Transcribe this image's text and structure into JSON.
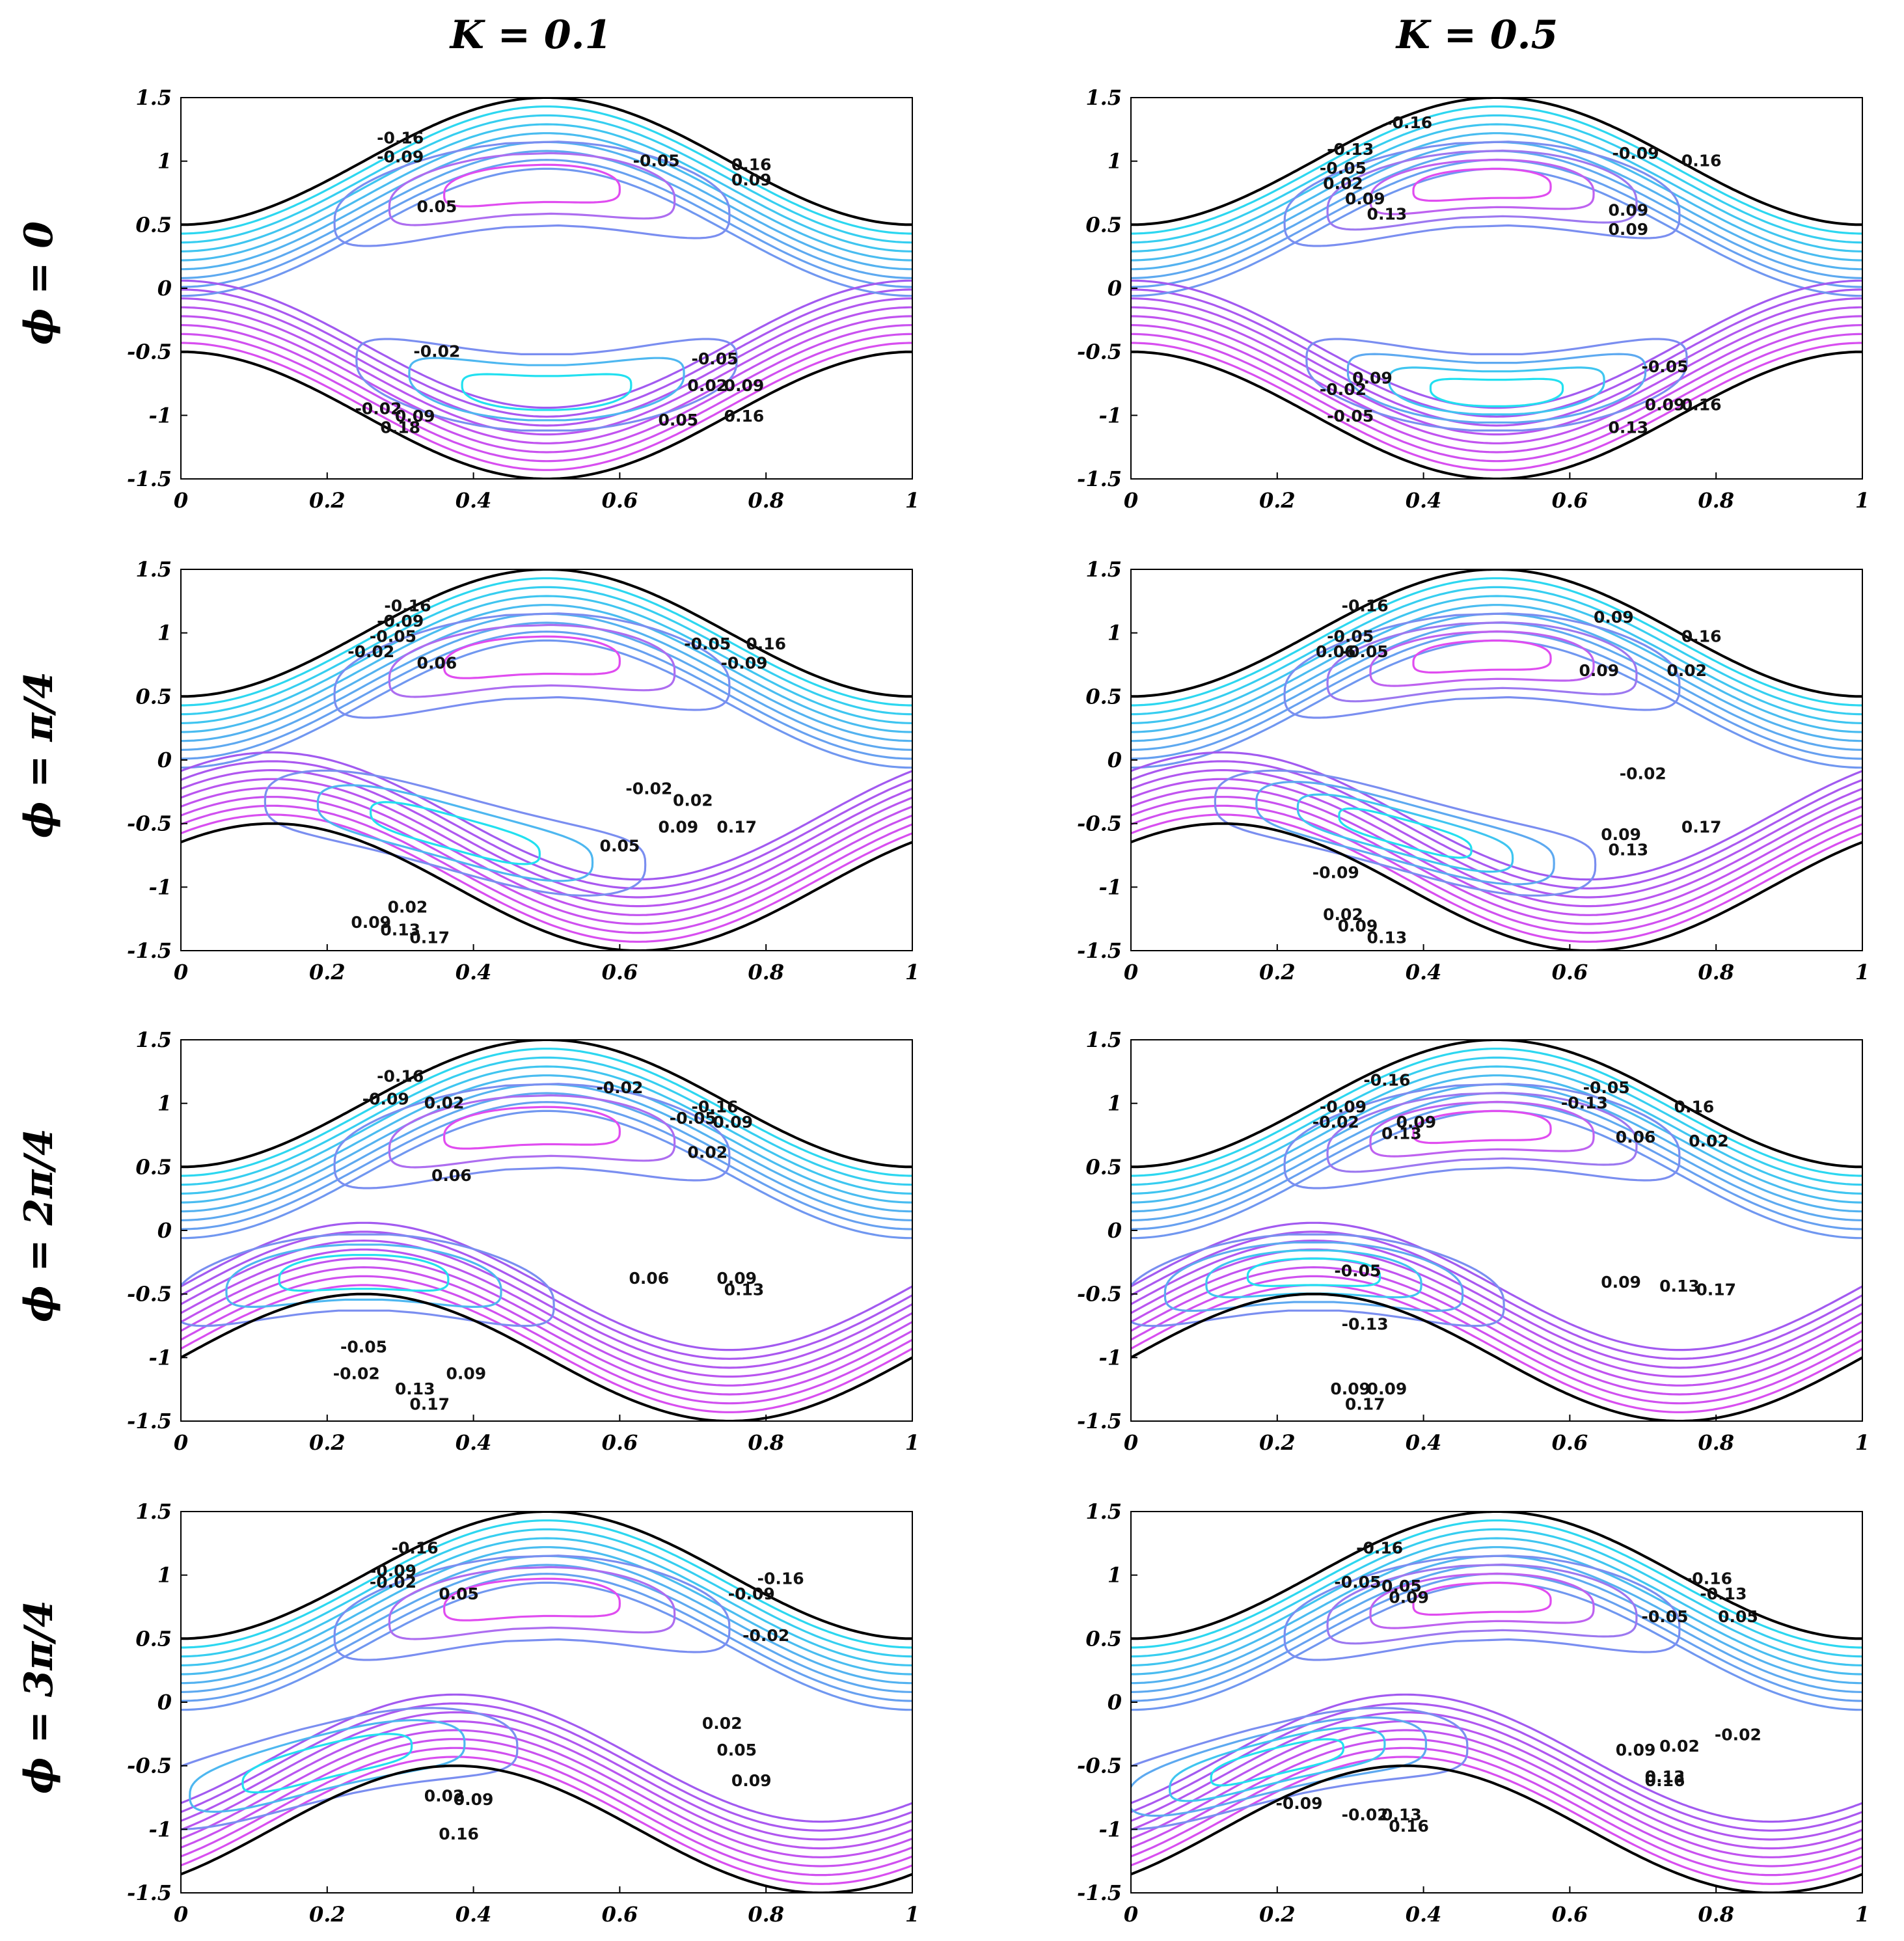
{
  "column_titles": [
    "K = 0.1",
    "K = 0.5"
  ],
  "row_titles": [
    "ϕ = 0",
    "ϕ = π/4",
    "ϕ = 2π/4",
    "ϕ = 3π/4"
  ],
  "chart_data": [
    {
      "type": "contour",
      "K": 0.1,
      "phi": 0,
      "xlim": [
        0,
        1
      ],
      "ylim": [
        -1.5,
        1.5
      ],
      "xticks": [
        "0",
        "0.2",
        "0.4",
        "0.6",
        "0.8",
        "1"
      ],
      "yticks": [
        "1.5",
        "1",
        "0.5",
        "0",
        "-0.5",
        "-1",
        "-1.5"
      ],
      "wall_amplitude": 0.5,
      "wall_phase": 0,
      "contour_labels": [
        "-0.16",
        "-0.09",
        "-0.05",
        "0.16",
        "0.09",
        "0.05",
        "-0.02",
        "-0.05",
        "-0.02",
        "0.09",
        "0.02",
        "0.09",
        "0.18",
        "0.05",
        "0.16"
      ]
    },
    {
      "type": "contour",
      "K": 0.5,
      "phi": 0,
      "xlim": [
        0,
        1
      ],
      "ylim": [
        -1.5,
        1.5
      ],
      "xticks": [
        "0",
        "0.2",
        "0.4",
        "0.6",
        "0.8",
        "1"
      ],
      "yticks": [
        "1.5",
        "1",
        "0.5",
        "0",
        "-0.5",
        "-1",
        "-1.5"
      ],
      "wall_amplitude": 0.5,
      "wall_phase": 0,
      "contour_labels": [
        "-0.16",
        "-0.13",
        "-0.05",
        "0.02",
        "0.09",
        "0.13",
        "-0.09",
        "0.16",
        "0.09",
        "0.09",
        "0.09",
        "-0.02",
        "-0.05",
        "-0.05",
        "0.09",
        "0.16",
        "0.13"
      ]
    },
    {
      "type": "contour",
      "K": 0.1,
      "phi": "π/4",
      "xlim": [
        0,
        1
      ],
      "ylim": [
        -1.5,
        1.5
      ],
      "xticks": [
        "0",
        "0.2",
        "0.4",
        "0.6",
        "0.8",
        "1"
      ],
      "yticks": [
        "1.5",
        "1",
        "0.5",
        "0",
        "-0.5",
        "-1",
        "-1.5"
      ],
      "wall_amplitude": 0.5,
      "wall_phase": 0.7854,
      "contour_labels": [
        "-0.16",
        "-0.09",
        "-0.05",
        "-0.02",
        "0.06",
        "-0.05",
        "0.16",
        "-0.09",
        "-0.02",
        "0.02",
        "0.09",
        "0.17",
        "0.05",
        "0.02",
        "0.09",
        "0.13",
        "0.17"
      ]
    },
    {
      "type": "contour",
      "K": 0.5,
      "phi": "π/4",
      "xlim": [
        0,
        1
      ],
      "ylim": [
        -1.5,
        1.5
      ],
      "xticks": [
        "0",
        "0.2",
        "0.4",
        "0.6",
        "0.8",
        "1"
      ],
      "yticks": [
        "1.5",
        "1",
        "0.5",
        "0",
        "-0.5",
        "-1",
        "-1.5"
      ],
      "wall_amplitude": 0.5,
      "wall_phase": 0.7854,
      "contour_labels": [
        "-0.16",
        "-0.05",
        "0.06",
        "-0.05",
        "0.09",
        "0.16",
        "0.09",
        "0.02",
        "-0.02",
        "0.09",
        "0.17",
        "0.13",
        "-0.09",
        "0.02",
        "0.09",
        "0.13"
      ]
    },
    {
      "type": "contour",
      "K": 0.1,
      "phi": "2π/4",
      "xlim": [
        0,
        1
      ],
      "ylim": [
        -1.5,
        1.5
      ],
      "xticks": [
        "0",
        "0.2",
        "0.4",
        "0.6",
        "0.8",
        "1"
      ],
      "yticks": [
        "1.5",
        "1",
        "0.5",
        "0",
        "-0.5",
        "-1",
        "-1.5"
      ],
      "wall_amplitude": 0.5,
      "wall_phase": 1.5708,
      "contour_labels": [
        "-0.16",
        "-0.09",
        "0.02",
        "-0.02",
        "-0.16",
        "-0.05",
        "-0.09",
        "0.02",
        "0.06",
        "0.06",
        "0.09",
        "0.13",
        "-0.05",
        "-0.02",
        "0.09",
        "0.13",
        "0.17"
      ]
    },
    {
      "type": "contour",
      "K": 0.5,
      "phi": "2π/4",
      "xlim": [
        0,
        1
      ],
      "ylim": [
        -1.5,
        1.5
      ],
      "xticks": [
        "0",
        "0.2",
        "0.4",
        "0.6",
        "0.8",
        "1"
      ],
      "yticks": [
        "1.5",
        "1",
        "0.5",
        "0",
        "-0.5",
        "-1",
        "-1.5"
      ],
      "wall_amplitude": 0.5,
      "wall_phase": 1.5708,
      "contour_labels": [
        "-0.16",
        "-0.09",
        "-0.02",
        "0.09",
        "0.13",
        "-0.05",
        "0.16",
        "-0.13",
        "0.06",
        "0.02",
        "-0.05",
        "0.09",
        "0.13",
        "0.17",
        "-0.13",
        "0.09",
        "0.09",
        "0.17"
      ]
    },
    {
      "type": "contour",
      "K": 0.1,
      "phi": "3π/4",
      "xlim": [
        0,
        1
      ],
      "ylim": [
        -1.5,
        1.5
      ],
      "xticks": [
        "0",
        "0.2",
        "0.4",
        "0.6",
        "0.8",
        "1"
      ],
      "yticks": [
        "1.5",
        "1",
        "0.5",
        "0",
        "-0.5",
        "-1",
        "-1.5"
      ],
      "wall_amplitude": 0.5,
      "wall_phase": 2.3562,
      "contour_labels": [
        "-0.16",
        "-0.09",
        "-0.02",
        "0.05",
        "-0.16",
        "-0.09",
        "-0.02",
        "0.02",
        "0.05",
        "0.09",
        "0.02",
        "0.09",
        "0.16"
      ]
    },
    {
      "type": "contour",
      "K": 0.5,
      "phi": "3π/4",
      "xlim": [
        0,
        1
      ],
      "ylim": [
        -1.5,
        1.5
      ],
      "xticks": [
        "0",
        "0.2",
        "0.4",
        "0.6",
        "0.8",
        "1"
      ],
      "yticks": [
        "1.5",
        "1",
        "0.5",
        "0",
        "-0.5",
        "-1",
        "-1.5"
      ],
      "wall_amplitude": 0.5,
      "wall_phase": 2.3562,
      "contour_labels": [
        "-0.16",
        "-0.05",
        "0.05",
        "0.09",
        "-0.16",
        "-0.13",
        "-0.05",
        "0.05",
        "-0.02",
        "0.02",
        "0.09",
        "0.13",
        "0.16",
        "-0.09",
        "-0.02",
        "0.13",
        "0.16"
      ]
    }
  ]
}
